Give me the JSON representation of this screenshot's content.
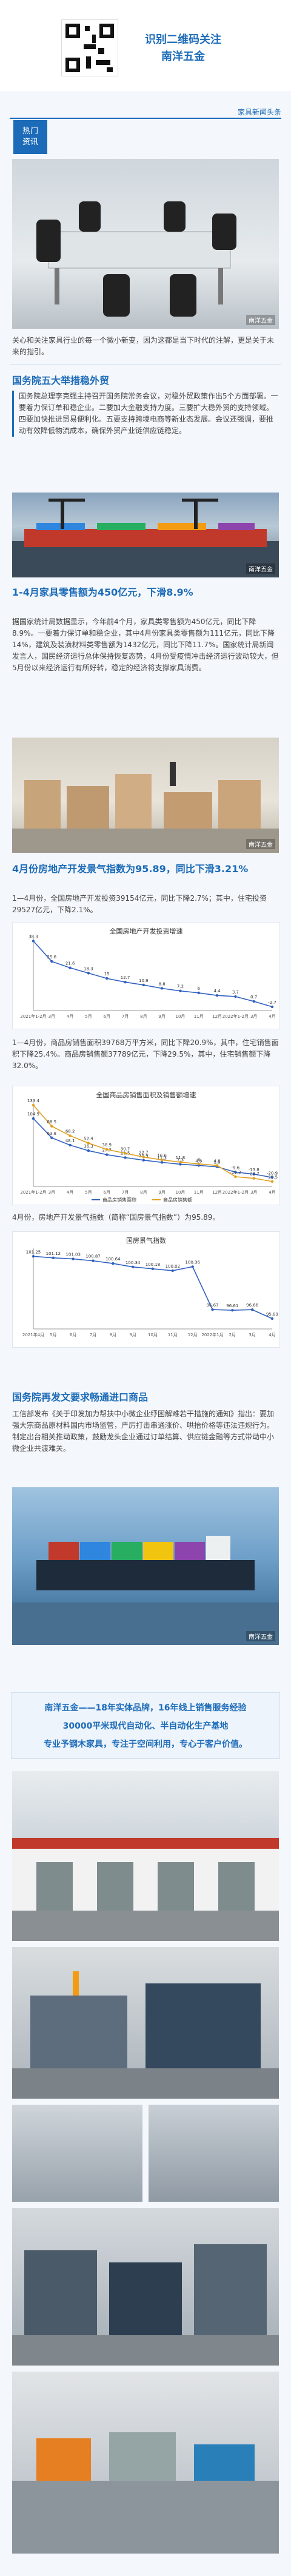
{
  "header": {
    "scan_line1": "识别二维码关注",
    "scan_line2": "南洋五金",
    "tagline": "家具新闻头条",
    "badge": "热门\n资讯"
  },
  "intro": {
    "text": "关心和关注家具行业的每一个微小新变，因为这都是当下时代的注解，更是关于未来的指引。",
    "watermark": "南洋五金"
  },
  "section1": {
    "title": "国务院五大举措稳外贸",
    "text": "国务院总理李克强主持召开国务院常务会议，对稳外贸政策作出5个方面部署。一要着力保订单和稳企业。二要加大金融支持力度。三要扩大稳外贸的支持领域。四要加快推进贸易便利化。五要支持跨境电商等新业态发展。会议还强调，要推动有效降低物流成本，确保外贸产业链供应链稳定。",
    "watermark": "南洋五金"
  },
  "section2": {
    "title": "1-4月家具零售额为450亿元，下滑8.9%",
    "text": "据国家统计局数据显示，今年前4个月，家具类零售额为450亿元，同比下降8.9%。一要着力保订单和稳企业，其中4月份家具类零售额为111亿元，同比下降14%，建筑及装潢材料类零售额为1432亿元，同比下降11.7%。国家统计局新闻发言人，国民经济运行总体保持恢复态势，4月份受疫情冲击经济运行波动较大，但5月份以来经济运行有所好转，稳定的经济将支撑家具消费。",
    "watermark": "南洋五金"
  },
  "section3": {
    "title": "4月份房地产开发景气指数为95.89，同比下滑3.21%",
    "text1": "1—4月份，全国房地产开发投资39154亿元，同比下降2.7%；其中，住宅投资29527亿元，下降2.1%。",
    "text2": "1—4月份，商品房销售面积39768万平方米，同比下降20.9%，其中，住宅销售面积下降25.4%。商品房销售额37789亿元，下降29.5%，其中，住宅销售额下降32.0%。",
    "text3": "4月份，房地产开发景气指数（简称“国房景气指数”）为95.89。"
  },
  "section4": {
    "title": "国务院再发文要求畅通进口商品",
    "text": "工信部发布《关于印发加力帮扶中小微企业纾困解难若干措施的通知》指出：要加强大宗商品原材料国内市场监管，严厉打击串通涨价、哄抬价格等违法违规行为。制定出台相关推动政策，鼓励龙头企业通过订单结算、供应链金融等方式带动中小微企业共渡难关。",
    "watermark": "南洋五金"
  },
  "footer": {
    "line1": "南洋五金——18年实体品牌，16年线上销售服务经验",
    "line2": "30000平米现代自动化、半自动化生产基地",
    "line3": "专业予钢木家具，专注于空间利用，专心于客户价值。"
  },
  "chart_data": [
    {
      "type": "line",
      "title": "全国房地产开发投资增速",
      "categories": [
        "2021年1-2月",
        "3月",
        "4月",
        "5月",
        "6月",
        "7月",
        "8月",
        "9月",
        "10月",
        "11月",
        "12月",
        "2022年1-2月",
        "3月",
        "4月"
      ],
      "series": [
        {
          "values": [
            38.3,
            25.6,
            21.6,
            18.3,
            15.0,
            12.7,
            10.9,
            8.8,
            7.2,
            6.0,
            4.4,
            3.7,
            0.7,
            -2.7
          ]
        }
      ],
      "ylim": [
        -5,
        40
      ],
      "color": "#3060c0"
    },
    {
      "type": "line",
      "title": "全国商品房销售面积及销售额增速",
      "categories": [
        "2021年1-2月",
        "3月",
        "4月",
        "5月",
        "6月",
        "7月",
        "8月",
        "9月",
        "10月",
        "11月",
        "12月",
        "2022年1-2月",
        "3月",
        "4月"
      ],
      "series": [
        {
          "name": "商品房销售面积",
          "values": [
            104.9,
            63.8,
            48.1,
            36.3,
            27.7,
            21.5,
            15.9,
            11.3,
            7.3,
            4.8,
            1.9,
            -9.6,
            -13.8,
            -20.9
          ]
        },
        {
          "name": "商品房销售额",
          "values": [
            133.4,
            88.5,
            68.2,
            52.4,
            38.9,
            30.7,
            22.7,
            16.6,
            11.8,
            8.0,
            4.8,
            -19.3,
            -22.7,
            -29.5
          ]
        }
      ],
      "ylim": [
        -40,
        140
      ],
      "colors": [
        "#3060c0",
        "#e0a020"
      ]
    },
    {
      "type": "line",
      "title": "国房景气指数",
      "categories": [
        "2021年4月",
        "5月",
        "6月",
        "7月",
        "8月",
        "9月",
        "10月",
        "11月",
        "12月",
        "2022年1月",
        "2月",
        "3月",
        "4月"
      ],
      "series": [
        {
          "values": [
            101.25,
            101.12,
            101.03,
            100.87,
            100.64,
            100.34,
            100.18,
            100.02,
            100.36,
            96.67,
            96.61,
            96.66,
            95.89
          ]
        }
      ],
      "ylim": [
        95,
        102
      ],
      "color": "#3060c0"
    }
  ]
}
